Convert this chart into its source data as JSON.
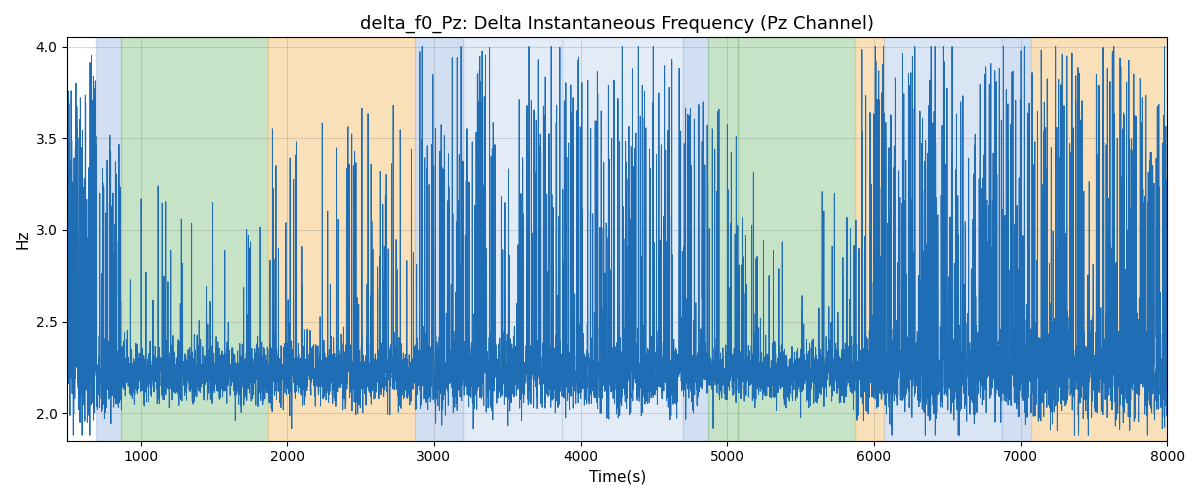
{
  "title": "delta_f0_Pz: Delta Instantaneous Frequency (Pz Channel)",
  "xlabel": "Time(s)",
  "ylabel": "Hz",
  "xlim": [
    500,
    8000
  ],
  "ylim": [
    1.85,
    4.05
  ],
  "yticks": [
    2.0,
    2.5,
    3.0,
    3.5,
    4.0
  ],
  "xticks": [
    1000,
    2000,
    3000,
    4000,
    5000,
    6000,
    7000,
    8000
  ],
  "line_color": "#1f6eb5",
  "line_width": 0.7,
  "bg_bands": [
    {
      "xmin": 700,
      "xmax": 870,
      "color": "#aec6e8",
      "alpha": 0.55
    },
    {
      "xmin": 870,
      "xmax": 1870,
      "color": "#90c890",
      "alpha": 0.5
    },
    {
      "xmin": 1870,
      "xmax": 2870,
      "color": "#f5c880",
      "alpha": 0.55
    },
    {
      "xmin": 2870,
      "xmax": 3200,
      "color": "#aec6e8",
      "alpha": 0.55
    },
    {
      "xmin": 3200,
      "xmax": 3870,
      "color": "#aec6e8",
      "alpha": 0.35
    },
    {
      "xmin": 3870,
      "xmax": 4700,
      "color": "#aec6e8",
      "alpha": 0.35
    },
    {
      "xmin": 4700,
      "xmax": 4870,
      "color": "#aec6e8",
      "alpha": 0.55
    },
    {
      "xmin": 4870,
      "xmax": 5070,
      "color": "#90c890",
      "alpha": 0.5
    },
    {
      "xmin": 5070,
      "xmax": 5870,
      "color": "#90c890",
      "alpha": 0.5
    },
    {
      "xmin": 5870,
      "xmax": 6070,
      "color": "#f5c880",
      "alpha": 0.55
    },
    {
      "xmin": 6070,
      "xmax": 6870,
      "color": "#aec6e8",
      "alpha": 0.45
    },
    {
      "xmin": 6870,
      "xmax": 7070,
      "color": "#aec6e8",
      "alpha": 0.55
    },
    {
      "xmin": 7070,
      "xmax": 8100,
      "color": "#f5c880",
      "alpha": 0.55
    }
  ],
  "figsize": [
    12.0,
    5.0
  ],
  "dpi": 100,
  "title_fontsize": 13,
  "label_fontsize": 11,
  "tick_fontsize": 10
}
